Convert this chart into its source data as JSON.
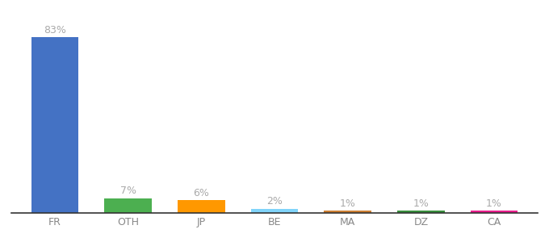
{
  "categories": [
    "FR",
    "OTH",
    "JP",
    "BE",
    "MA",
    "DZ",
    "CA"
  ],
  "values": [
    83,
    7,
    6,
    2,
    1,
    1,
    1
  ],
  "bar_colors": [
    "#4472c4",
    "#4caf50",
    "#ff9800",
    "#81d4fa",
    "#cd7f32",
    "#388e3c",
    "#e91e8c"
  ],
  "labels": [
    "83%",
    "7%",
    "6%",
    "2%",
    "1%",
    "1%",
    "1%"
  ],
  "background_color": "#ffffff",
  "ylim": [
    0,
    95
  ],
  "label_fontsize": 9,
  "tick_fontsize": 9,
  "label_color": "#aaaaaa",
  "tick_color": "#888888"
}
